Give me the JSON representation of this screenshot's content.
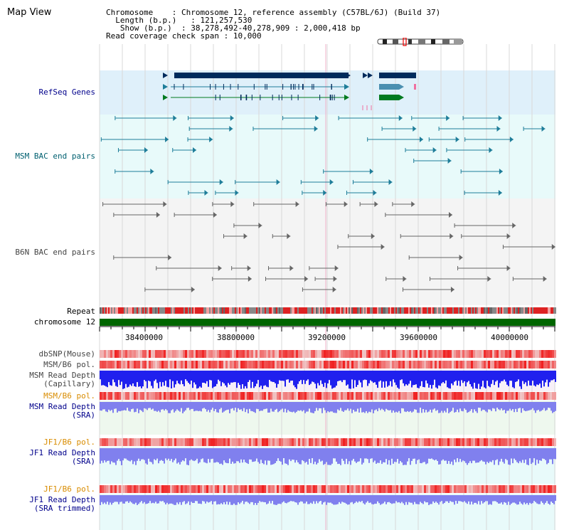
{
  "page": {
    "title": "Map View"
  },
  "info": {
    "chromosome_key": "Chromosome",
    "chromosome_val": "Chromosome 12, reference assembly (C57BL/6J) (Build 37)",
    "length_key": "Length (b.p.)",
    "length_val": "121,257,530",
    "show_key": "Show (b.p.)",
    "show_val": "38,278,492-40,278,909 : 2,000,418 bp",
    "span_key": "Read coverage check span",
    "span_val": "10,000"
  },
  "tracks": {
    "refseq": "RefSeq Genes",
    "msm_bac": "MSM BAC end pairs",
    "b6n_bac": "B6N BAC end pairs",
    "repeat": "Repeat",
    "chromosome": "chromosome 12",
    "dbsnp": "dbSNP(Mouse)",
    "msm_b6_pol_1": "MSM/B6 pol.",
    "msm_read_depth_cap_1": "MSM Read Depth",
    "msm_read_depth_cap_2": "(Capillary)",
    "msm_b6_pol_2": "MSM/B6 pol.",
    "msm_read_depth_sra_1": "MSM Read Depth",
    "msm_read_depth_sra_2": "(SRA)",
    "jf1_b6_pol_1": "JF1/B6 pol.",
    "jf1_read_depth_sra_1": "JF1 Read Depth",
    "jf1_read_depth_sra_2": "(SRA)",
    "jf1_b6_pol_2": "JF1/B6 pol.",
    "jf1_read_depth_trim_1": "JF1 Read Depth",
    "jf1_read_depth_trim_2": "(SRA trimmed)"
  },
  "axis": {
    "ticks": [
      "38400000",
      "38800000",
      "39200000",
      "39600000",
      "40000000"
    ]
  },
  "colors": {
    "refseq_bg": "#dff0fa",
    "msm_bg": "#e8fafa",
    "b6n_bg": "#f4f4f4",
    "navy": "#002b5c",
    "teal": "#1e7d99",
    "green": "#007a1f",
    "chrom_green": "#006600",
    "depth_blue": "#2020ee",
    "depth_light": "#8080ee"
  }
}
